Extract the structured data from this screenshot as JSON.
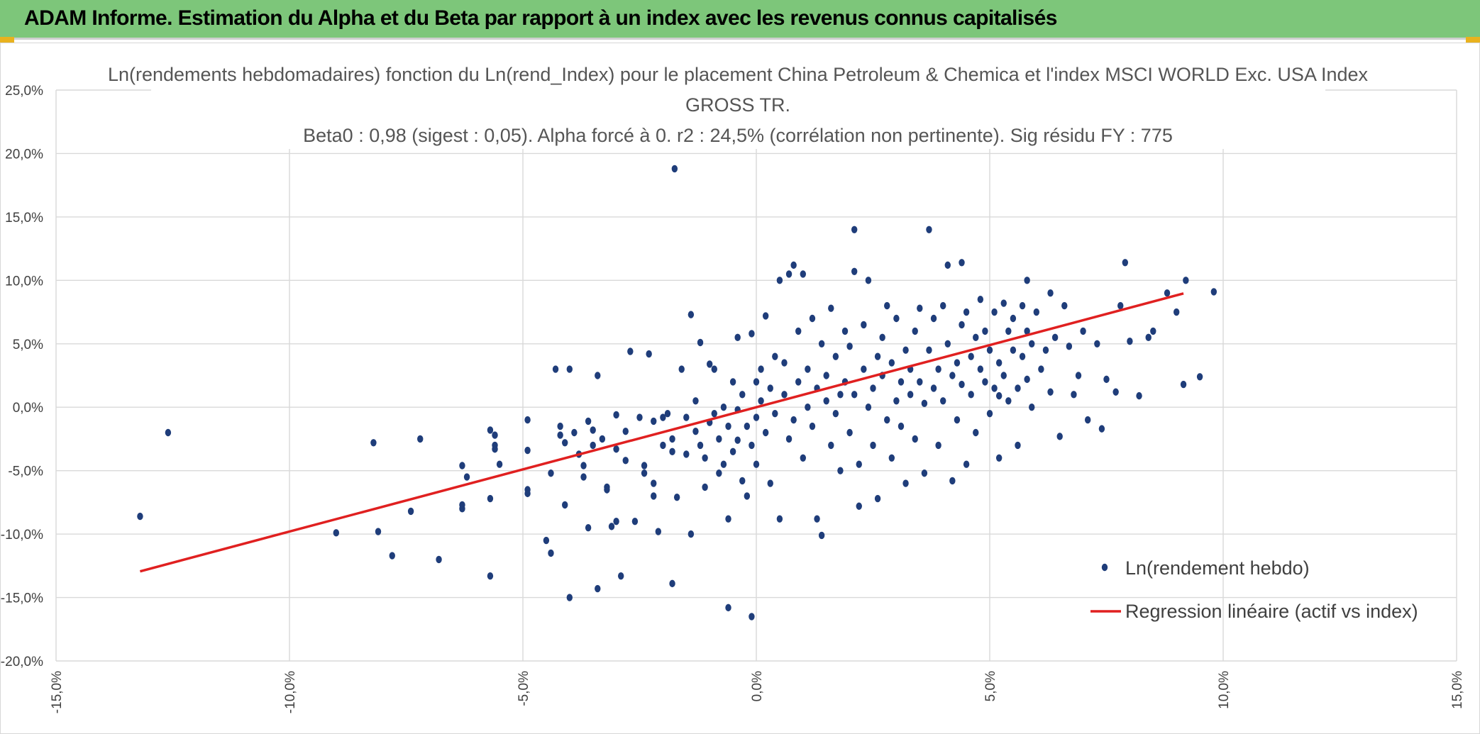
{
  "banner": {
    "title": "ADAM Informe. Estimation du Alpha et du Beta par rapport à un index avec les revenus connus capitalisés",
    "background_color": "#7dc67a",
    "corner_color": "#e9b21e"
  },
  "chart_data": {
    "type": "scatter",
    "title_lines": [
      "Ln(rendements hebdomadaires) fonction du Ln(rend_Index) pour le placement China Petroleum & Chemica et l'index MSCI WORLD Exc. USA Index",
      "GROSS TR.",
      "Beta0 : 0,98 (sigest : 0,05). Alpha forcé à 0. r2 : 24,5% (corrélation non pertinente). Sig résidu FY : 775"
    ],
    "xlim": [
      -0.15,
      0.15
    ],
    "ylim": [
      -0.2,
      0.25
    ],
    "x_ticks": [
      {
        "value": -0.15,
        "label": "-15,0%"
      },
      {
        "value": -0.1,
        "label": "-10,0%"
      },
      {
        "value": -0.05,
        "label": "-5,0%"
      },
      {
        "value": 0.0,
        "label": "0,0%"
      },
      {
        "value": 0.05,
        "label": "5,0%"
      },
      {
        "value": 0.1,
        "label": "10,0%"
      },
      {
        "value": 0.15,
        "label": "15,0%"
      }
    ],
    "y_ticks": [
      {
        "value": 0.25,
        "label": "25,0%"
      },
      {
        "value": 0.2,
        "label": "20,0%"
      },
      {
        "value": 0.15,
        "label": "15,0%"
      },
      {
        "value": 0.1,
        "label": "10,0%"
      },
      {
        "value": 0.05,
        "label": "5,0%"
      },
      {
        "value": 0.0,
        "label": "0,0%"
      },
      {
        "value": -0.05,
        "label": "-5,0%"
      },
      {
        "value": -0.1,
        "label": "-10,0%"
      },
      {
        "value": -0.15,
        "label": "-15,0%"
      },
      {
        "value": -0.2,
        "label": "-20,0%"
      }
    ],
    "grid": true,
    "legend_position": "bottom-right",
    "series": [
      {
        "name": "Ln(rendement hebdo)",
        "kind": "scatter",
        "color": "#1f3d7a",
        "points": [
          [
            -0.132,
            -0.086
          ],
          [
            -0.126,
            -0.02
          ],
          [
            -0.09,
            -0.099
          ],
          [
            -0.082,
            -0.028
          ],
          [
            -0.081,
            -0.098
          ],
          [
            -0.078,
            -0.117
          ],
          [
            -0.074,
            -0.082
          ],
          [
            -0.072,
            -0.025
          ],
          [
            -0.068,
            -0.12
          ],
          [
            -0.063,
            -0.046
          ],
          [
            -0.063,
            -0.08
          ],
          [
            -0.063,
            -0.077
          ],
          [
            -0.062,
            -0.055
          ],
          [
            -0.057,
            -0.133
          ],
          [
            -0.057,
            -0.018
          ],
          [
            -0.057,
            -0.072
          ],
          [
            -0.056,
            -0.03
          ],
          [
            -0.056,
            -0.033
          ],
          [
            -0.056,
            -0.022
          ],
          [
            -0.055,
            -0.045
          ],
          [
            -0.049,
            -0.065
          ],
          [
            -0.049,
            -0.068
          ],
          [
            -0.049,
            -0.01
          ],
          [
            -0.049,
            -0.034
          ],
          [
            -0.045,
            -0.105
          ],
          [
            -0.044,
            -0.115
          ],
          [
            -0.044,
            -0.052
          ],
          [
            -0.043,
            0.03
          ],
          [
            -0.042,
            -0.015
          ],
          [
            -0.042,
            -0.022
          ],
          [
            -0.041,
            -0.028
          ],
          [
            -0.041,
            -0.077
          ],
          [
            -0.04,
            -0.15
          ],
          [
            -0.04,
            0.03
          ],
          [
            -0.039,
            -0.02
          ],
          [
            -0.038,
            -0.037
          ],
          [
            -0.037,
            -0.046
          ],
          [
            -0.037,
            -0.055
          ],
          [
            -0.036,
            -0.095
          ],
          [
            -0.036,
            -0.011
          ],
          [
            -0.035,
            -0.018
          ],
          [
            -0.035,
            -0.03
          ],
          [
            -0.034,
            -0.143
          ],
          [
            -0.034,
            0.025
          ],
          [
            -0.033,
            -0.025
          ],
          [
            -0.032,
            -0.063
          ],
          [
            -0.032,
            -0.065
          ],
          [
            -0.031,
            -0.094
          ],
          [
            -0.03,
            -0.033
          ],
          [
            -0.03,
            -0.006
          ],
          [
            -0.03,
            -0.09
          ],
          [
            -0.029,
            -0.133
          ],
          [
            -0.028,
            -0.019
          ],
          [
            -0.028,
            -0.042
          ],
          [
            -0.027,
            0.044
          ],
          [
            -0.026,
            -0.09
          ],
          [
            -0.025,
            -0.008
          ],
          [
            -0.024,
            -0.046
          ],
          [
            -0.024,
            -0.052
          ],
          [
            -0.023,
            0.042
          ],
          [
            -0.022,
            -0.011
          ],
          [
            -0.022,
            -0.06
          ],
          [
            -0.022,
            -0.07
          ],
          [
            -0.021,
            -0.098
          ],
          [
            -0.02,
            -0.03
          ],
          [
            -0.02,
            -0.008
          ],
          [
            -0.019,
            -0.005
          ],
          [
            -0.018,
            -0.139
          ],
          [
            -0.018,
            -0.025
          ],
          [
            -0.018,
            -0.035
          ],
          [
            -0.017,
            -0.071
          ],
          [
            -0.016,
            0.03
          ],
          [
            -0.015,
            -0.008
          ],
          [
            -0.015,
            -0.037
          ],
          [
            -0.014,
            -0.1
          ],
          [
            -0.014,
            0.073
          ],
          [
            -0.013,
            0.005
          ],
          [
            -0.013,
            -0.019
          ],
          [
            -0.012,
            0.051
          ],
          [
            -0.012,
            -0.03
          ],
          [
            -0.011,
            -0.063
          ],
          [
            -0.011,
            -0.04
          ],
          [
            -0.01,
            0.034
          ],
          [
            -0.01,
            -0.012
          ],
          [
            -0.009,
            -0.005
          ],
          [
            -0.009,
            0.03
          ],
          [
            -0.008,
            -0.025
          ],
          [
            -0.008,
            -0.052
          ],
          [
            -0.007,
            0.0
          ],
          [
            -0.007,
            -0.045
          ],
          [
            -0.006,
            -0.015
          ],
          [
            -0.006,
            -0.158
          ],
          [
            -0.006,
            -0.088
          ],
          [
            -0.005,
            0.02
          ],
          [
            -0.005,
            -0.035
          ],
          [
            -0.004,
            0.055
          ],
          [
            -0.004,
            -0.002
          ],
          [
            -0.004,
            -0.026
          ],
          [
            -0.003,
            -0.058
          ],
          [
            -0.003,
            0.01
          ],
          [
            -0.002,
            -0.07
          ],
          [
            -0.002,
            -0.015
          ],
          [
            -0.001,
            0.058
          ],
          [
            -0.001,
            -0.165
          ],
          [
            -0.001,
            -0.03
          ],
          [
            0.0,
            0.02
          ],
          [
            0.0,
            -0.008
          ],
          [
            0.0,
            -0.045
          ],
          [
            0.001,
            0.03
          ],
          [
            0.001,
            0.005
          ],
          [
            0.002,
            0.072
          ],
          [
            0.002,
            -0.02
          ],
          [
            0.003,
            -0.06
          ],
          [
            0.003,
            0.015
          ],
          [
            0.004,
            0.04
          ],
          [
            0.004,
            -0.005
          ],
          [
            0.005,
            0.1
          ],
          [
            0.005,
            -0.088
          ],
          [
            0.006,
            0.01
          ],
          [
            0.006,
            0.035
          ],
          [
            0.007,
            -0.025
          ],
          [
            0.007,
            0.105
          ],
          [
            0.008,
            0.112
          ],
          [
            0.008,
            -0.01
          ],
          [
            0.009,
            0.02
          ],
          [
            0.009,
            0.06
          ],
          [
            0.01,
            0.105
          ],
          [
            0.01,
            -0.04
          ],
          [
            0.011,
            0.0
          ],
          [
            0.011,
            0.03
          ],
          [
            0.012,
            0.07
          ],
          [
            0.012,
            -0.015
          ],
          [
            0.013,
            0.015
          ],
          [
            0.013,
            -0.088
          ],
          [
            0.014,
            0.05
          ],
          [
            0.014,
            -0.101
          ],
          [
            0.015,
            0.005
          ],
          [
            0.015,
            0.025
          ],
          [
            0.016,
            -0.03
          ],
          [
            0.016,
            0.078
          ],
          [
            0.017,
            0.04
          ],
          [
            0.017,
            -0.005
          ],
          [
            0.018,
            0.01
          ],
          [
            0.018,
            -0.05
          ],
          [
            0.019,
            0.06
          ],
          [
            0.019,
            0.02
          ],
          [
            0.02,
            -0.02
          ],
          [
            0.02,
            0.048
          ],
          [
            0.021,
            0.01
          ],
          [
            0.021,
            0.107
          ],
          [
            0.022,
            -0.045
          ],
          [
            0.022,
            -0.078
          ],
          [
            0.023,
            0.03
          ],
          [
            0.023,
            0.065
          ],
          [
            0.024,
            0.1
          ],
          [
            0.024,
            0.0
          ],
          [
            0.025,
            0.015
          ],
          [
            0.025,
            -0.03
          ],
          [
            0.026,
            0.04
          ],
          [
            0.026,
            -0.072
          ],
          [
            0.027,
            0.055
          ],
          [
            0.027,
            0.025
          ],
          [
            0.028,
            -0.01
          ],
          [
            0.028,
            0.08
          ],
          [
            0.029,
            0.035
          ],
          [
            0.029,
            -0.04
          ],
          [
            0.03,
            0.005
          ],
          [
            0.03,
            0.07
          ],
          [
            0.031,
            0.02
          ],
          [
            0.031,
            -0.015
          ],
          [
            0.032,
            0.045
          ],
          [
            0.032,
            -0.06
          ],
          [
            0.033,
            0.03
          ],
          [
            0.033,
            0.01
          ],
          [
            0.034,
            0.06
          ],
          [
            0.034,
            -0.025
          ],
          [
            0.035,
            0.078
          ],
          [
            0.035,
            0.02
          ],
          [
            0.036,
            0.003
          ],
          [
            0.036,
            -0.052
          ],
          [
            0.037,
            0.045
          ],
          [
            0.037,
            0.14
          ],
          [
            0.038,
            0.015
          ],
          [
            0.038,
            0.07
          ],
          [
            0.039,
            -0.03
          ],
          [
            0.039,
            0.03
          ],
          [
            0.04,
            0.08
          ],
          [
            0.04,
            0.005
          ],
          [
            0.041,
            0.112
          ],
          [
            0.041,
            0.05
          ],
          [
            0.042,
            -0.058
          ],
          [
            0.042,
            0.025
          ],
          [
            0.043,
            0.035
          ],
          [
            0.043,
            -0.01
          ],
          [
            0.044,
            0.065
          ],
          [
            0.044,
            0.018
          ],
          [
            0.045,
            0.075
          ],
          [
            0.045,
            -0.045
          ],
          [
            0.046,
            0.04
          ],
          [
            0.046,
            0.01
          ],
          [
            0.047,
            0.055
          ],
          [
            0.047,
            -0.02
          ],
          [
            0.048,
            0.085
          ],
          [
            0.048,
            0.03
          ],
          [
            0.049,
            0.02
          ],
          [
            0.049,
            0.06
          ],
          [
            0.05,
            -0.005
          ],
          [
            0.05,
            0.045
          ],
          [
            0.051,
            0.075
          ],
          [
            0.051,
            0.015
          ],
          [
            0.052,
            0.035
          ],
          [
            0.052,
            -0.04
          ],
          [
            0.053,
            0.082
          ],
          [
            0.053,
            0.025
          ],
          [
            0.054,
            0.06
          ],
          [
            0.054,
            0.005
          ],
          [
            0.055,
            0.045
          ],
          [
            0.055,
            0.07
          ],
          [
            0.056,
            0.015
          ],
          [
            0.056,
            -0.03
          ],
          [
            0.057,
            0.08
          ],
          [
            0.057,
            0.04
          ],
          [
            0.058,
            0.022
          ],
          [
            0.058,
            0.06
          ],
          [
            0.059,
            0.0
          ],
          [
            0.059,
            0.05
          ],
          [
            0.06,
            0.075
          ],
          [
            0.061,
            0.03
          ],
          [
            0.062,
            0.045
          ],
          [
            0.063,
            0.012
          ],
          [
            0.064,
            0.055
          ],
          [
            0.065,
            -0.023
          ],
          [
            0.066,
            0.08
          ],
          [
            0.067,
            0.048
          ],
          [
            0.068,
            0.01
          ],
          [
            0.069,
            0.025
          ],
          [
            0.07,
            0.06
          ],
          [
            0.071,
            -0.01
          ],
          [
            0.073,
            0.05
          ],
          [
            0.074,
            -0.017
          ],
          [
            0.075,
            0.022
          ],
          [
            0.077,
            0.012
          ],
          [
            0.078,
            0.08
          ],
          [
            0.079,
            0.114
          ],
          [
            0.08,
            0.052
          ],
          [
            0.082,
            0.009
          ],
          [
            0.084,
            0.055
          ],
          [
            0.085,
            0.06
          ],
          [
            0.088,
            0.09
          ],
          [
            0.09,
            0.075
          ],
          [
            0.092,
            0.1
          ],
          [
            0.095,
            0.024
          ],
          [
            0.098,
            0.091
          ],
          [
            0.0915,
            0.018
          ],
          [
            0.063,
            0.09
          ],
          [
            0.058,
            0.1
          ],
          [
            0.052,
            0.009
          ],
          [
            0.044,
            0.114
          ],
          [
            -0.0175,
            0.188
          ],
          [
            0.021,
            0.14
          ]
        ]
      },
      {
        "name": "Regression linéaire (actif vs index)",
        "kind": "line",
        "color": "#e02020",
        "slope": 0.98,
        "intercept": 0,
        "x_start": -0.132,
        "x_end": 0.0915
      }
    ]
  }
}
